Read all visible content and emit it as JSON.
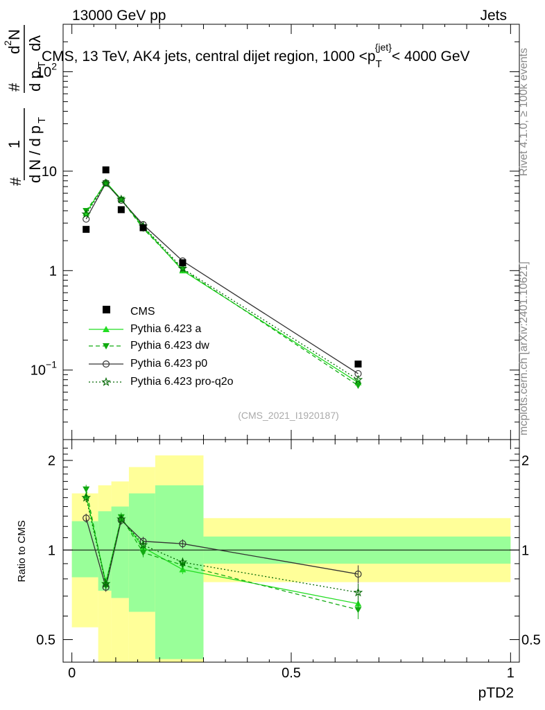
{
  "header": {
    "left": "13000 GeV pp",
    "right": "Jets"
  },
  "side": {
    "rivet": "Rivet 4.1.0, ≥ 100k events",
    "mcplots": "mcplots.cern.ch [arXiv:2401.10621]"
  },
  "chart_data": [
    {
      "type": "line",
      "panel": "main",
      "title_parts": [
        "CMS, 13 TeV, AK4 jets, central dijet region, 1000 <p",
        "T",
        "{jet}",
        "< 4000 GeV"
      ],
      "ylabel_parts": [
        "#",
        "1",
        "d N / d p",
        "T",
        "#",
        "d p",
        "T",
        "d",
        "2",
        "N",
        "dλ"
      ],
      "xlabel": "pTD2",
      "yscale": "log",
      "ylim": [
        0.02,
        300
      ],
      "xlim": [
        -0.02,
        1.02
      ],
      "xticks": [
        0,
        0.5,
        1
      ],
      "xtick_labels": [
        "0",
        "0.5",
        "1"
      ],
      "yticks": [
        {
          "value": 0.1,
          "base": "10",
          "exp": "−1"
        },
        {
          "value": 1,
          "label": "1"
        },
        {
          "value": 10,
          "label": "10"
        },
        {
          "value": 100,
          "base": "10",
          "exp": "2"
        }
      ],
      "watermark": "(CMS_2021_I1920187)",
      "data": {
        "name": "CMS",
        "color": "#000000",
        "x": [
          0.0325,
          0.0775,
          0.1125,
          0.1625,
          0.2525,
          0.6525
        ],
        "y": [
          2.6,
          10.3,
          4.1,
          2.7,
          1.2,
          0.115
        ]
      },
      "series": [
        {
          "name": "Pythia 6.423 a",
          "color": "#22dd22",
          "dash": "",
          "marker": "triangle-up",
          "x": [
            0.0325,
            0.0775,
            0.1125,
            0.1625,
            0.2525,
            0.6525
          ],
          "y": [
            3.8,
            7.8,
            5.2,
            2.75,
            1.0,
            0.075
          ]
        },
        {
          "name": "Pythia 6.423 dw",
          "color": "#11aa11",
          "dash": "6,4",
          "marker": "triangle-down",
          "x": [
            0.0325,
            0.0775,
            0.1125,
            0.1625,
            0.2525,
            0.6525
          ],
          "y": [
            4.0,
            7.6,
            5.2,
            2.65,
            1.03,
            0.07
          ]
        },
        {
          "name": "Pythia 6.423 p0",
          "color": "#333333",
          "dash": "",
          "marker": "circle-open",
          "x": [
            0.0325,
            0.0775,
            0.1125,
            0.1625,
            0.2525,
            0.6525
          ],
          "y": [
            3.3,
            7.6,
            5.1,
            2.9,
            1.25,
            0.092
          ]
        },
        {
          "name": "Pythia 6.423 pro-q2o",
          "color": "#006600",
          "dash": "2,3",
          "marker": "star-open",
          "x": [
            0.0325,
            0.0775,
            0.1125,
            0.1625,
            0.2525,
            0.6525
          ],
          "y": [
            3.7,
            7.5,
            5.2,
            2.8,
            1.05,
            0.08
          ]
        }
      ]
    },
    {
      "type": "line",
      "panel": "ratio",
      "ylabel": "Ratio to CMS",
      "yscale": "log",
      "ylim": [
        0.42,
        2.35
      ],
      "yticks": [
        {
          "value": 0.5,
          "label": "0.5"
        },
        {
          "value": 1,
          "label": "1"
        },
        {
          "value": 2,
          "label": "2"
        }
      ],
      "bands": [
        {
          "x0": 0.0,
          "x1": 0.06,
          "yellow": [
            0.55,
            1.55
          ],
          "green": [
            0.81,
            1.25
          ]
        },
        {
          "x0": 0.06,
          "x1": 0.09,
          "yellow": [
            0.4,
            1.65
          ],
          "green": [
            0.73,
            1.35
          ]
        },
        {
          "x0": 0.09,
          "x1": 0.13,
          "yellow": [
            0.38,
            1.7
          ],
          "green": [
            0.69,
            1.4
          ]
        },
        {
          "x0": 0.13,
          "x1": 0.19,
          "yellow": [
            0.32,
            1.9
          ],
          "green": [
            0.62,
            1.55
          ]
        },
        {
          "x0": 0.19,
          "x1": 0.3,
          "yellow": [
            0.3,
            2.08
          ],
          "green": [
            0.43,
            1.65
          ]
        },
        {
          "x0": 0.3,
          "x1": 1.0,
          "yellow": [
            0.78,
            1.28
          ],
          "green": [
            0.9,
            1.11
          ]
        }
      ],
      "series": [
        {
          "name": "Pythia 6.423 a",
          "color": "#22dd22",
          "dash": "",
          "marker": "triangle-up",
          "x": [
            0.0325,
            0.0775,
            0.1125,
            0.1625,
            0.2525,
            0.6525
          ],
          "y": [
            1.52,
            0.78,
            1.28,
            1.02,
            0.86,
            0.66
          ]
        },
        {
          "name": "Pythia 6.423 dw",
          "color": "#11aa11",
          "dash": "6,4",
          "marker": "triangle-down",
          "x": [
            0.0325,
            0.0775,
            0.1125,
            0.1625,
            0.2525,
            0.6525
          ],
          "y": [
            1.6,
            0.76,
            1.29,
            0.98,
            0.89,
            0.63
          ]
        },
        {
          "name": "Pythia 6.423 p0",
          "color": "#333333",
          "dash": "",
          "marker": "circle-open",
          "x": [
            0.0325,
            0.0775,
            0.1125,
            0.1625,
            0.2525,
            0.6525
          ],
          "y": [
            1.28,
            0.75,
            1.26,
            1.07,
            1.05,
            0.83
          ]
        },
        {
          "name": "Pythia 6.423 pro-q2o",
          "color": "#006600",
          "dash": "2,3",
          "marker": "star-open",
          "x": [
            0.0325,
            0.0775,
            0.1125,
            0.1625,
            0.2525,
            0.6525
          ],
          "y": [
            1.5,
            0.77,
            1.27,
            1.04,
            0.91,
            0.72
          ]
        }
      ]
    }
  ]
}
